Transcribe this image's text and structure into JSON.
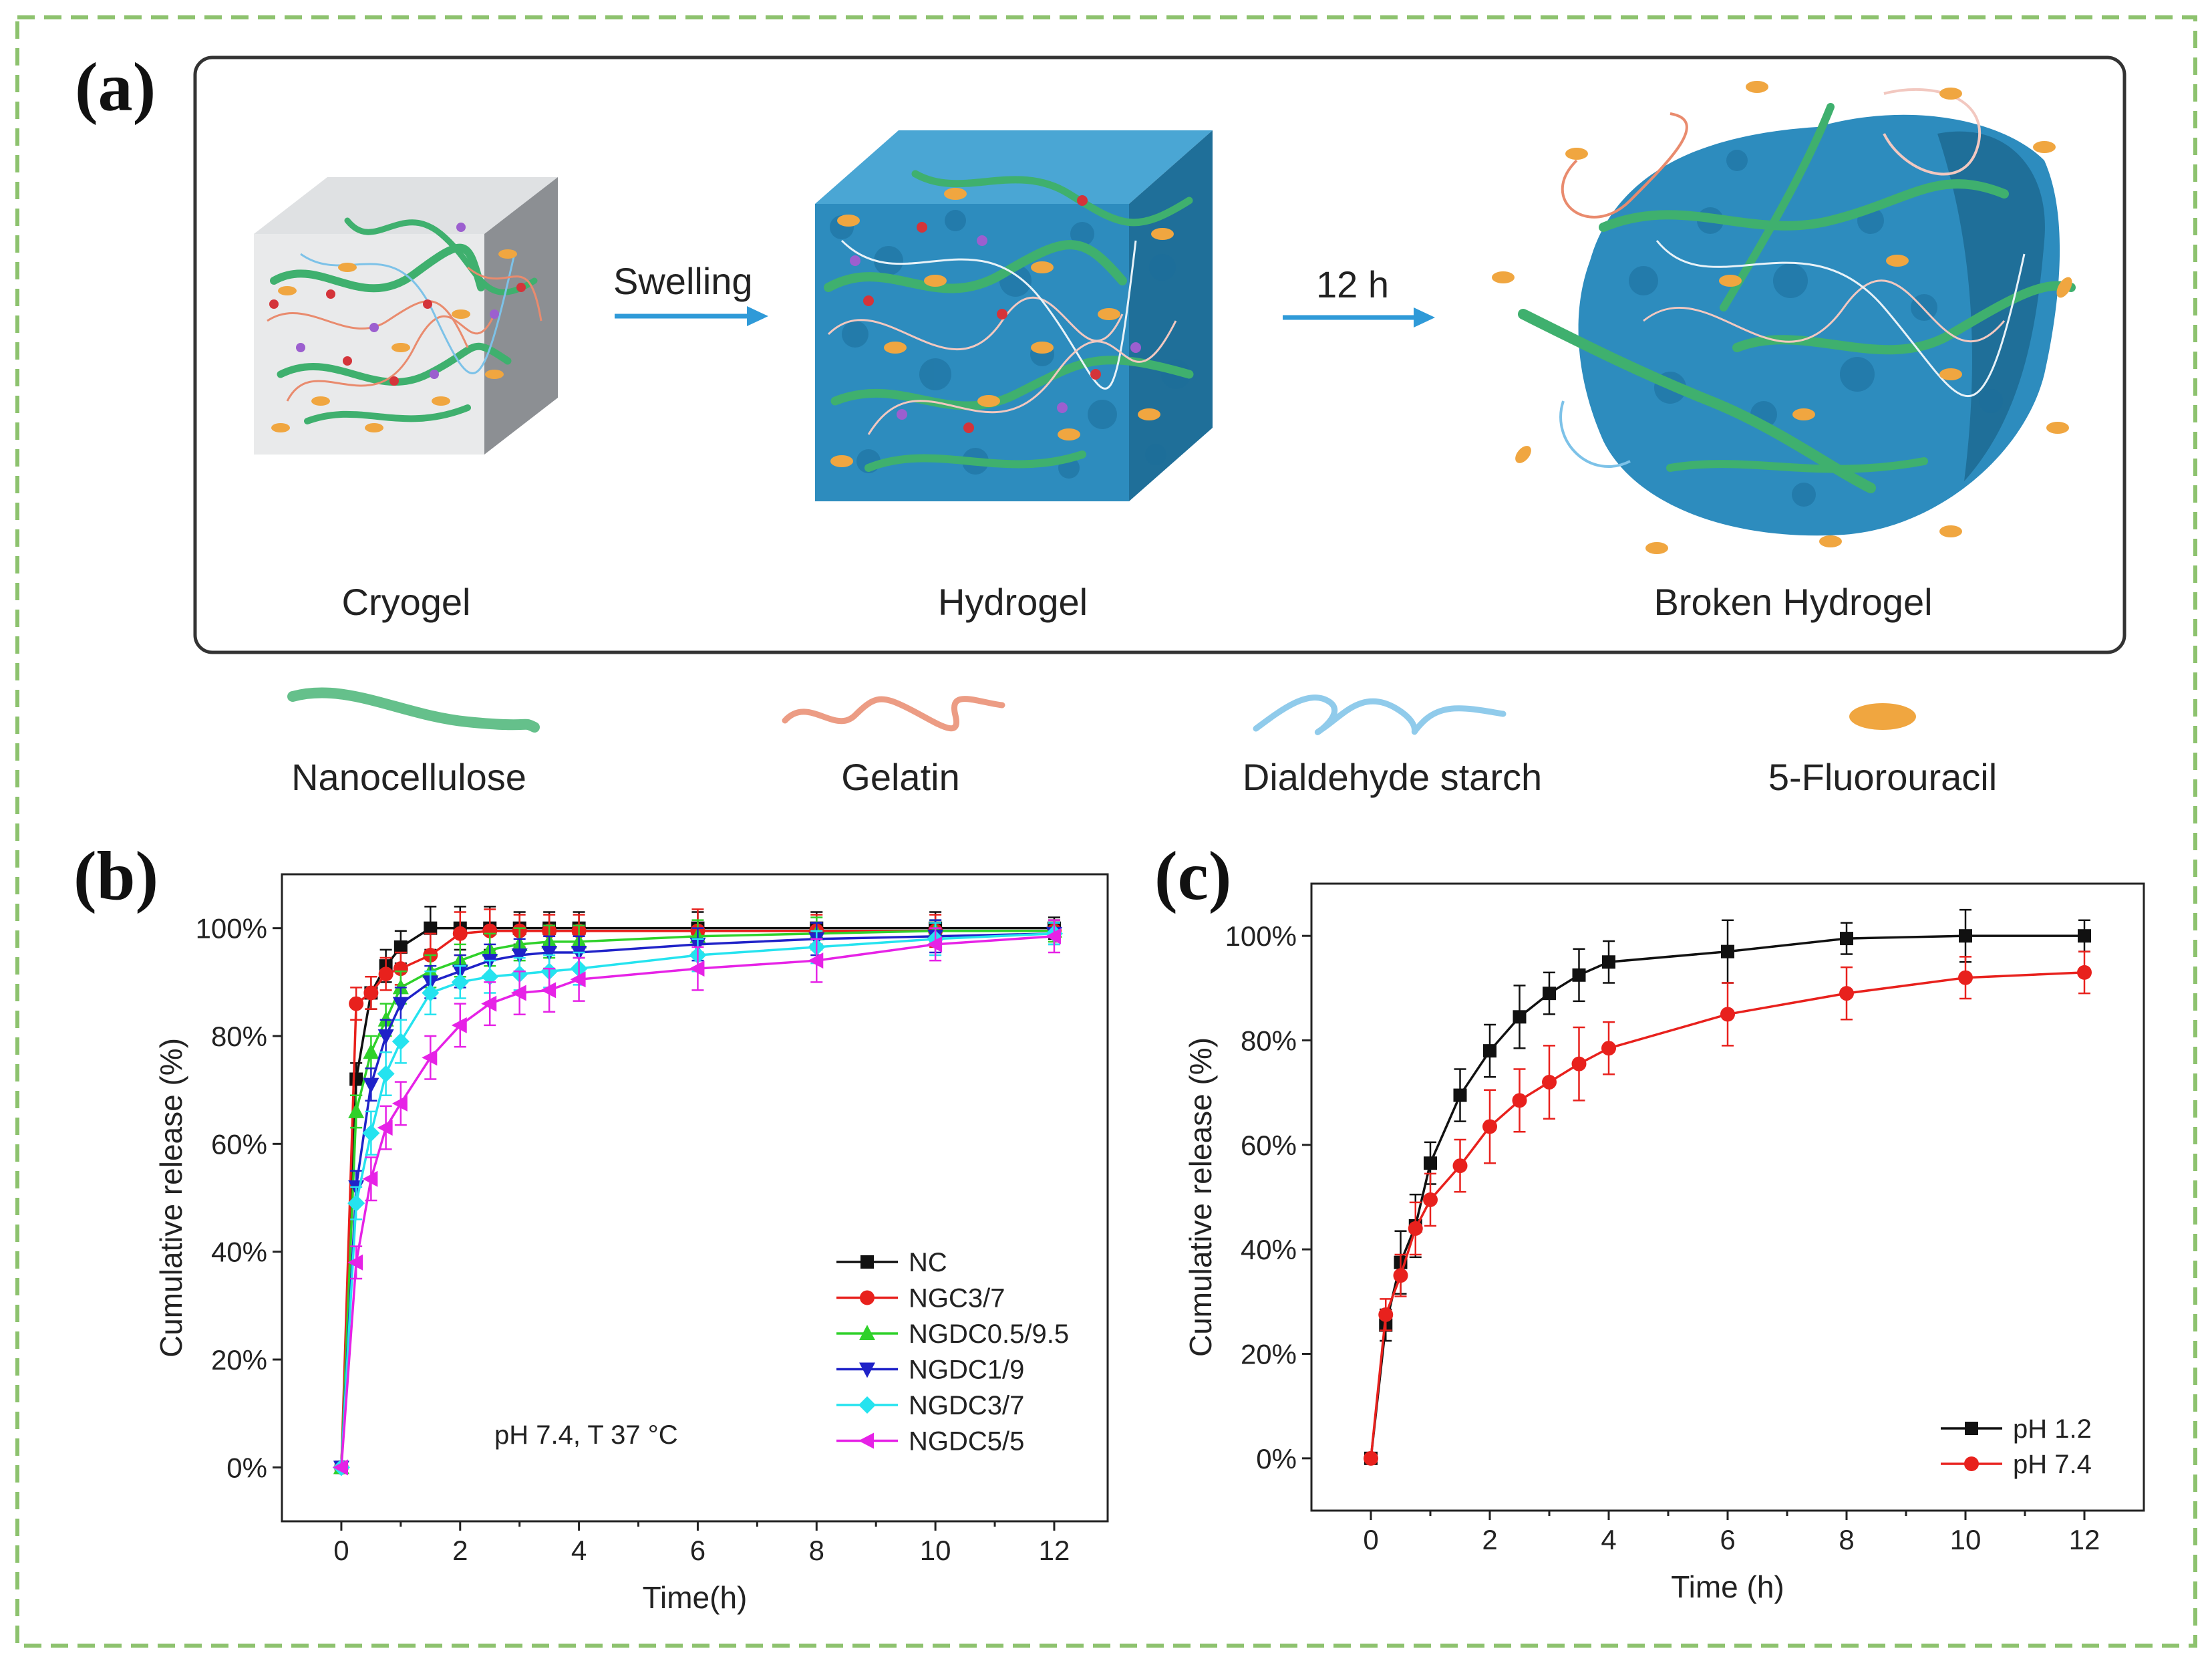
{
  "panels": {
    "a": {
      "letter": "(a)",
      "arrow1_label": "Swelling",
      "arrow2_label": "12 h",
      "stages": [
        "Cryogel",
        "Hydrogel",
        "Broken Hydrogel"
      ],
      "legend": [
        "Nanocellulose",
        "Gelatin",
        "Dialdehyde starch",
        "5-Fluorouracil"
      ]
    },
    "b": {
      "letter": "(b)"
    },
    "c": {
      "letter": "(c)"
    }
  },
  "colors": {
    "frame_dash": "#8dc26e",
    "nanocellulose": "#3fb06e",
    "gelatin": "#e98b6e",
    "starch": "#7dc2e8",
    "drug": "#f0a640",
    "hydrogel": "#2d8cbe"
  },
  "chart_data": [
    {
      "type": "line",
      "panel": "b",
      "xlabel": "Time(h)",
      "ylabel": "Cumulative release (%)",
      "annotation": "pH 7.4, T 37 °C",
      "xlim": [
        -1,
        12.9
      ],
      "ylim": [
        -10,
        110
      ],
      "xticks": [
        "0",
        "2",
        "4",
        "6",
        "8",
        "10",
        "12"
      ],
      "yticks": [
        "0%",
        "20%",
        "40%",
        "60%",
        "80%",
        "100%"
      ],
      "series": [
        {
          "name": "NC",
          "color": "#111111",
          "marker": "square",
          "x": [
            0,
            0.25,
            0.5,
            0.75,
            1,
            1.5,
            2,
            2.5,
            3,
            3.5,
            4,
            6,
            8,
            10,
            12
          ],
          "y": [
            0,
            72,
            88,
            93,
            96.5,
            100,
            100,
            100,
            100,
            100,
            100,
            100,
            100,
            100,
            100
          ],
          "err": [
            0,
            3,
            3,
            3,
            3,
            4,
            4,
            4,
            3,
            3,
            3,
            3,
            3,
            3,
            2
          ]
        },
        {
          "name": "NGC3/7",
          "color": "#e8211d",
          "marker": "circle",
          "x": [
            0,
            0.25,
            0.5,
            0.75,
            1,
            1.5,
            2,
            2.5,
            3,
            3.5,
            4,
            6,
            8,
            10,
            12
          ],
          "y": [
            0,
            86,
            88,
            91.5,
            92.5,
            95,
            99,
            99.5,
            99.5,
            99.5,
            99.5,
            99.5,
            99.5,
            99.5,
            99.5
          ],
          "err": [
            0,
            3,
            3,
            3,
            3,
            4,
            4,
            4,
            3,
            3,
            3,
            4,
            3,
            3,
            2
          ]
        },
        {
          "name": "NGDC0.5/9.5",
          "color": "#2fd12a",
          "marker": "triangle-up",
          "x": [
            0,
            0.25,
            0.5,
            0.75,
            1,
            1.5,
            2,
            2.5,
            3,
            3.5,
            4,
            6,
            8,
            10,
            12
          ],
          "y": [
            0,
            66,
            77,
            83,
            89,
            92,
            94,
            96,
            97,
            97.5,
            97.5,
            98.5,
            99,
            99.5,
            99.5
          ],
          "err": [
            0,
            3,
            3,
            3,
            3,
            3,
            3,
            3,
            3,
            3,
            3,
            3,
            3,
            2,
            2
          ]
        },
        {
          "name": "NGDC1/9",
          "color": "#1f22c8",
          "marker": "triangle-down",
          "x": [
            0,
            0.25,
            0.5,
            0.75,
            1,
            1.5,
            2,
            2.5,
            3,
            3.5,
            4,
            6,
            8,
            10,
            12
          ],
          "y": [
            0,
            52,
            71,
            80,
            86,
            90,
            92,
            94,
            95,
            95.5,
            95.5,
            97,
            98,
            98.5,
            99
          ],
          "err": [
            0,
            3,
            3,
            3,
            3,
            3,
            3,
            3,
            3,
            3,
            3,
            3,
            3,
            3,
            2
          ]
        },
        {
          "name": "NGDC3/7",
          "color": "#25e3ef",
          "marker": "diamond",
          "x": [
            0,
            0.25,
            0.5,
            0.75,
            1,
            1.5,
            2,
            2.5,
            3,
            3.5,
            4,
            6,
            8,
            10,
            12
          ],
          "y": [
            0,
            49,
            62,
            73,
            79,
            88,
            90,
            91,
            91.5,
            92,
            92.5,
            95,
            96.5,
            98,
            99
          ],
          "err": [
            0,
            3,
            4,
            4,
            4,
            4,
            3,
            3,
            3,
            3,
            3,
            3,
            3,
            3,
            2
          ]
        },
        {
          "name": "NGDC5/5",
          "color": "#e622e6",
          "marker": "triangle-left",
          "x": [
            0,
            0.25,
            0.5,
            0.75,
            1,
            1.5,
            2,
            2.5,
            3,
            3.5,
            4,
            6,
            8,
            10,
            12
          ],
          "y": [
            0,
            38,
            53.5,
            63,
            67.5,
            76,
            82,
            86,
            88,
            88.5,
            90.5,
            92.5,
            94,
            97,
            98.5
          ],
          "err": [
            0,
            3,
            4,
            4,
            4,
            4,
            4,
            4,
            4,
            4,
            4,
            4,
            4,
            3,
            3
          ]
        }
      ]
    },
    {
      "type": "line",
      "panel": "c",
      "xlabel": "Time (h)",
      "ylabel": "Cumulative release (%)",
      "xlim": [
        -1,
        13
      ],
      "ylim": [
        -10,
        110
      ],
      "xticks": [
        "0",
        "2",
        "4",
        "6",
        "8",
        "10",
        "12"
      ],
      "yticks": [
        "0%",
        "20%",
        "40%",
        "60%",
        "80%",
        "100%"
      ],
      "series": [
        {
          "name": "pH 1.2",
          "color": "#111111",
          "marker": "square",
          "x": [
            0,
            0.25,
            0.5,
            0.75,
            1,
            1.5,
            2,
            2.5,
            3,
            3.5,
            4,
            6,
            8,
            10,
            12
          ],
          "y": [
            0,
            25.5,
            37.5,
            44.5,
            56.5,
            69.5,
            78,
            84.5,
            89,
            92.5,
            95,
            97,
            99.5,
            100,
            100
          ],
          "err": [
            0,
            3,
            6,
            6,
            4,
            5,
            5,
            6,
            4,
            5,
            4,
            6,
            3,
            5,
            3
          ]
        },
        {
          "name": "pH 7.4",
          "color": "#e8211d",
          "marker": "circle",
          "x": [
            0,
            0.25,
            0.5,
            0.75,
            1,
            1.5,
            2,
            2.5,
            3,
            3.5,
            4,
            6,
            8,
            10,
            12
          ],
          "y": [
            0,
            27.5,
            35,
            44,
            49.5,
            56,
            63.5,
            68.5,
            72,
            75.5,
            78.5,
            85,
            89,
            92,
            93
          ],
          "err": [
            0,
            3,
            4,
            5,
            5,
            5,
            7,
            6,
            7,
            7,
            5,
            6,
            5,
            4,
            4
          ]
        }
      ]
    }
  ]
}
